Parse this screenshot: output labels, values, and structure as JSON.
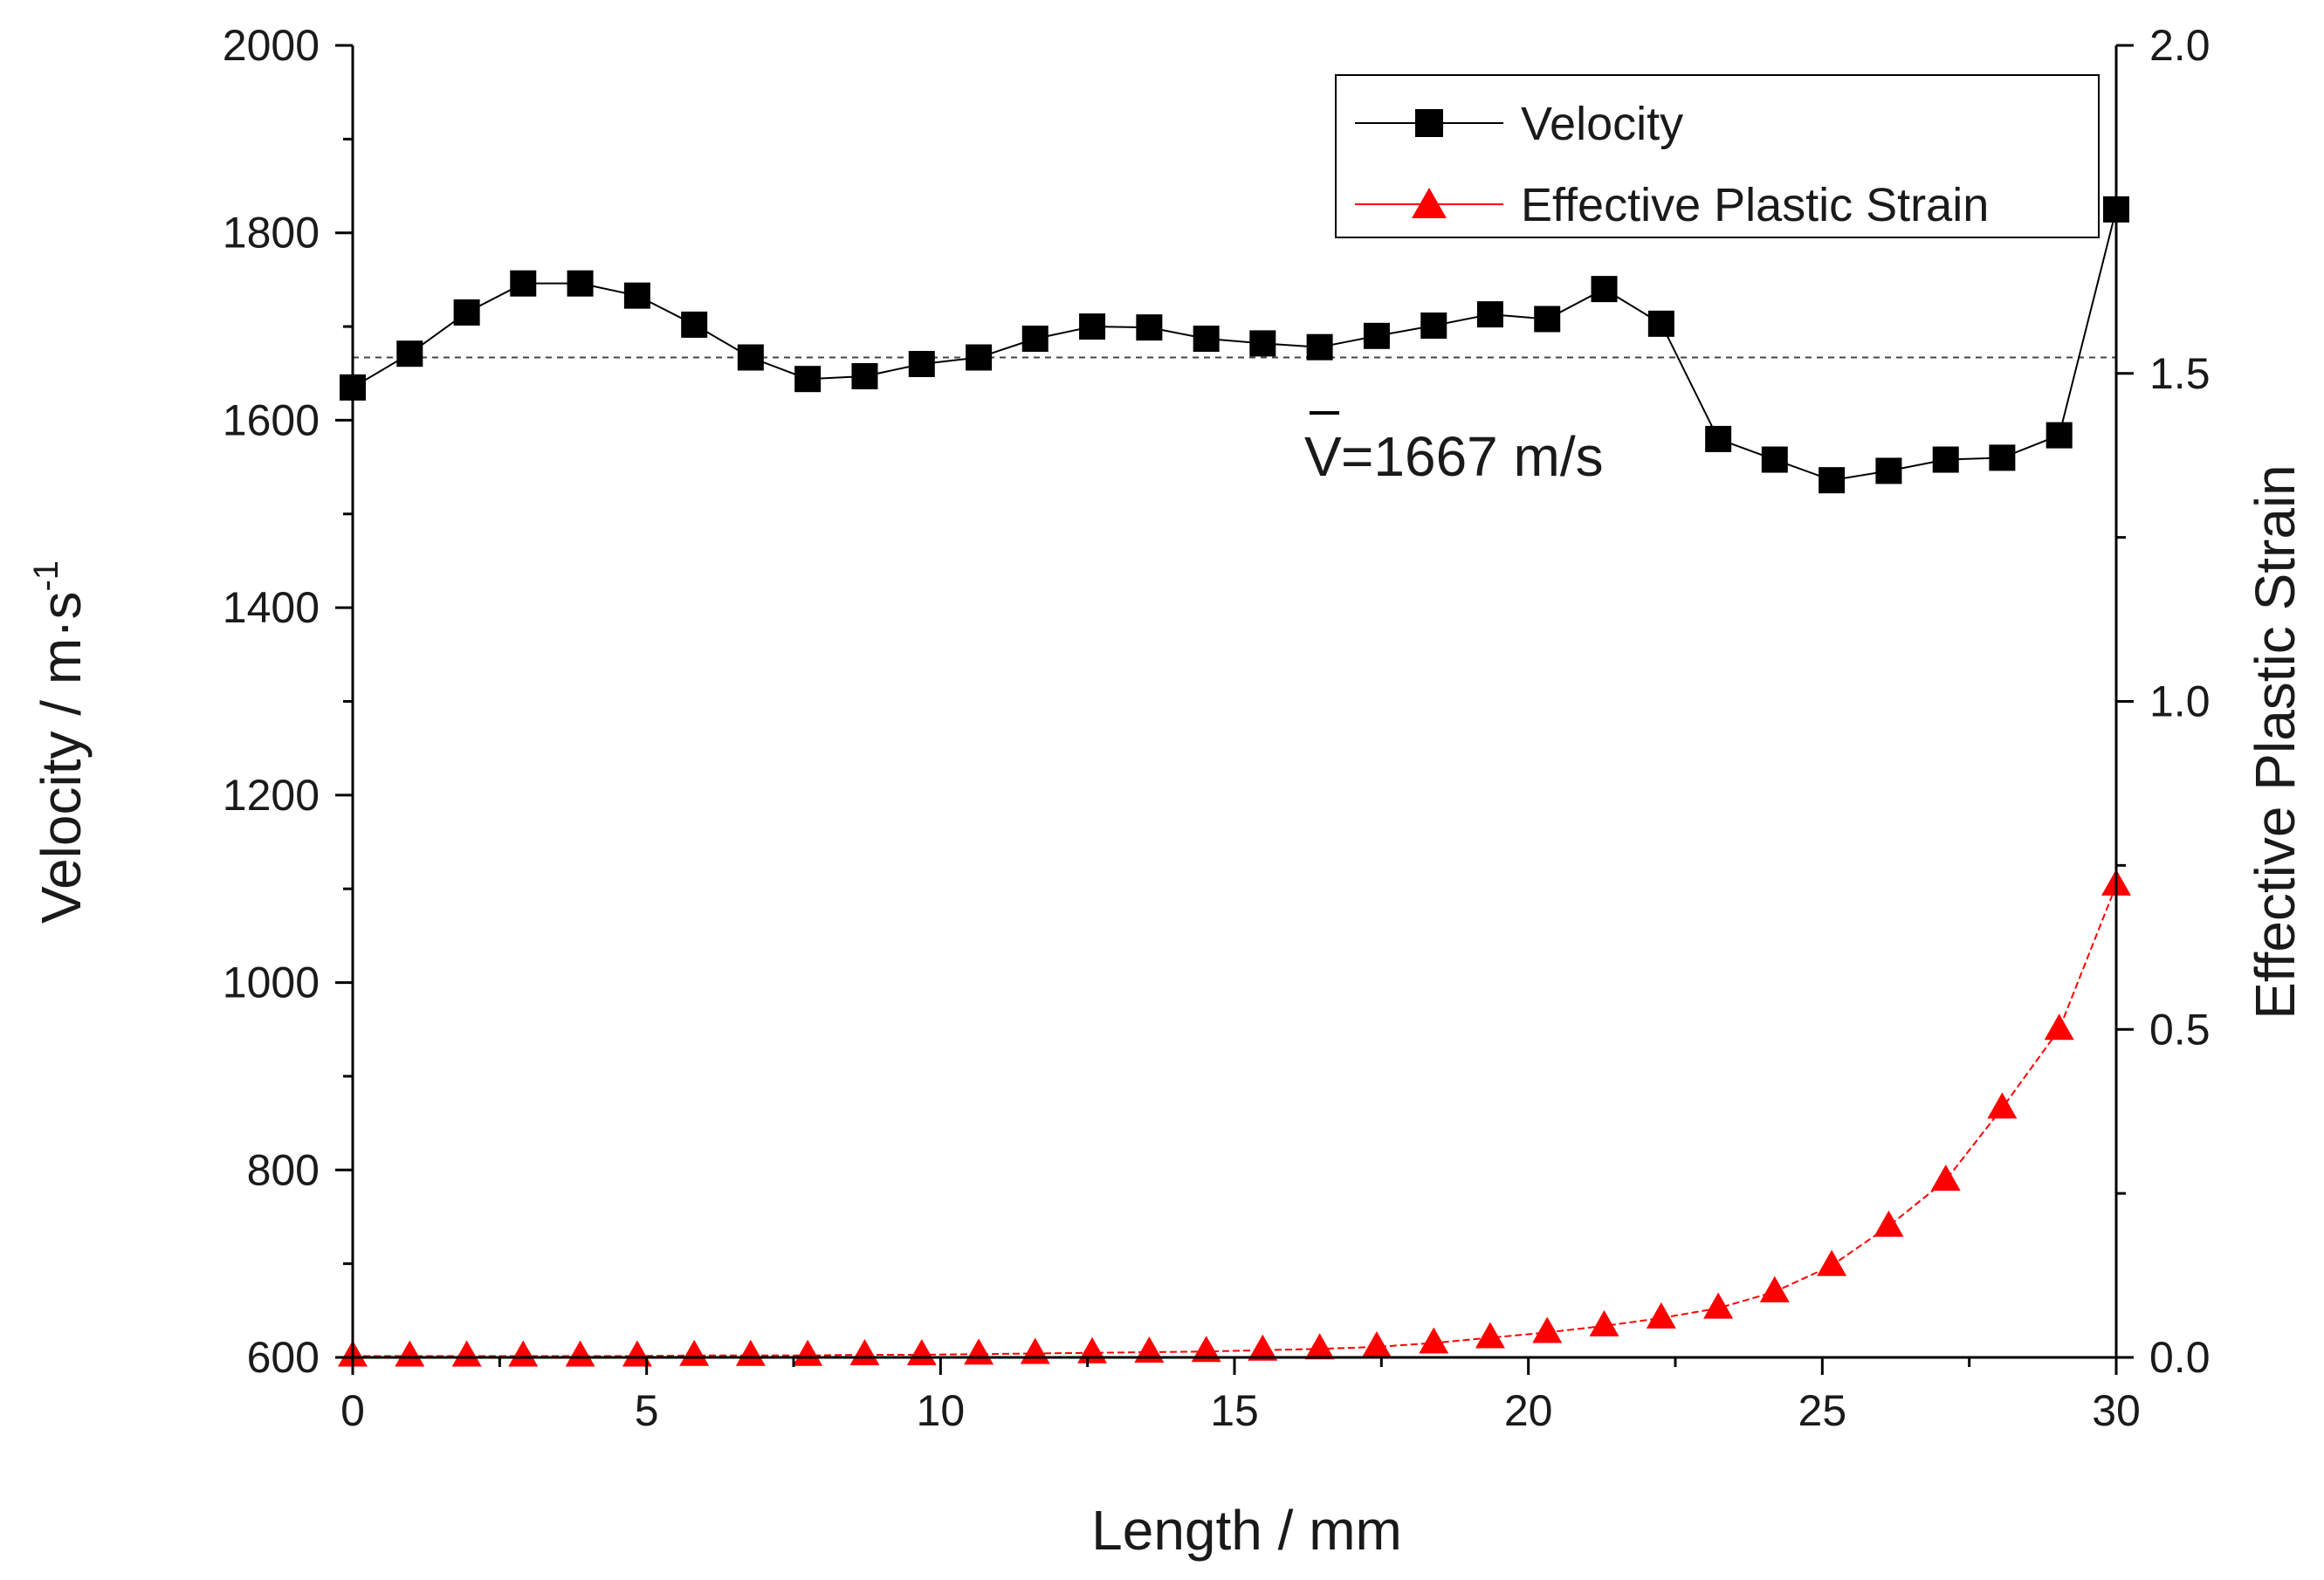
{
  "chart_data": {
    "type": "line",
    "title": "",
    "xlabel": "Length / mm",
    "ylabel": "Velocity / m·s",
    "ylabel_superscript": "-1",
    "y2label": "Effective Plastic Strain",
    "xlim": [
      0,
      30
    ],
    "ylim": [
      600,
      2000
    ],
    "y2lim": [
      0.0,
      2.0
    ],
    "x_ticks": [
      0,
      5,
      10,
      15,
      20,
      25,
      30
    ],
    "x_tick_labels": [
      "0",
      "5",
      "10",
      "15",
      "20",
      "25",
      "30"
    ],
    "y_ticks": [
      600,
      800,
      1000,
      1200,
      1400,
      1600,
      1800,
      2000
    ],
    "y_tick_labels": [
      "600",
      "800",
      "1000",
      "1200",
      "1400",
      "1600",
      "1800",
      "2000"
    ],
    "y2_ticks": [
      0.0,
      0.5,
      1.0,
      1.5,
      2.0
    ],
    "y2_tick_labels": [
      "0.0",
      "0.5",
      "1.0",
      "1.5",
      "2.0"
    ],
    "grid": false,
    "legend_position": "top-right",
    "x": [
      0,
      0.97,
      1.94,
      2.9,
      3.87,
      4.84,
      5.81,
      6.77,
      7.74,
      8.71,
      9.68,
      10.65,
      11.61,
      12.58,
      13.55,
      14.52,
      15.48,
      16.45,
      17.42,
      18.39,
      19.35,
      20.32,
      21.29,
      22.26,
      23.23,
      24.19,
      25.16,
      26.13,
      27.1,
      28.06,
      29.03,
      30
    ],
    "series": [
      {
        "name": "Velocity",
        "axis": "left",
        "marker": "square",
        "color": "#000000",
        "values": [
          1635,
          1671,
          1715,
          1746,
          1746,
          1733,
          1702,
          1667,
          1644,
          1647,
          1660,
          1667,
          1687,
          1700,
          1699,
          1687,
          1682,
          1678,
          1690,
          1701,
          1713,
          1708,
          1740,
          1703,
          1580,
          1558,
          1536,
          1546,
          1558,
          1560,
          1584,
          1825
        ]
      },
      {
        "name": "Effective Plastic Strain",
        "axis": "right",
        "marker": "triangle",
        "color": "#ff0000",
        "values": [
          0.002,
          0.002,
          0.002,
          0.002,
          0.002,
          0.002,
          0.003,
          0.003,
          0.003,
          0.004,
          0.004,
          0.005,
          0.006,
          0.007,
          0.008,
          0.009,
          0.011,
          0.013,
          0.016,
          0.022,
          0.03,
          0.038,
          0.048,
          0.06,
          0.075,
          0.1,
          0.14,
          0.2,
          0.27,
          0.38,
          0.5,
          0.72
        ]
      }
    ],
    "mean_line": {
      "value": 1667,
      "style": "dashed",
      "label": "=1667 m/s",
      "symbol": "V"
    }
  }
}
